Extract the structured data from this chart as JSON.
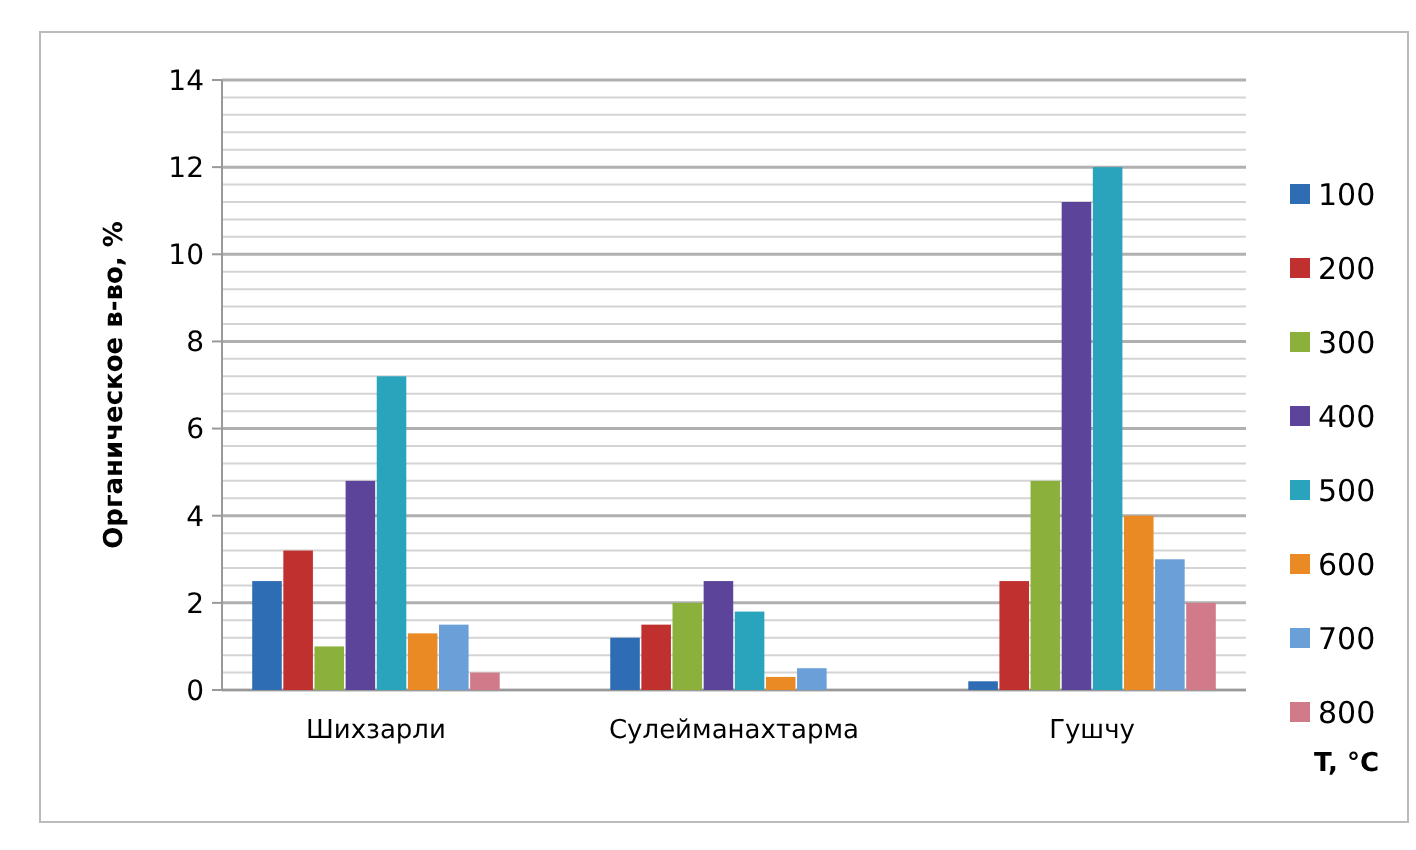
{
  "chart_data": {
    "type": "bar",
    "ylabel": "Органическое в-во, %",
    "legend_title": "T, °C",
    "legend": "right",
    "grid": "y",
    "categories": [
      "Шихзарли",
      "Сулейманахтарма",
      "Гушчу"
    ],
    "ylim": [
      0,
      14
    ],
    "yticks": [
      0,
      {
        "value": 0.4,
        "label": null
      },
      {
        "value": 0.8,
        "label": null
      },
      {
        "value": 1.2,
        "label": null
      },
      {
        "value": 1.6,
        "label": null
      },
      2,
      {
        "value": 2.4,
        "label": null
      },
      {
        "value": 2.8,
        "label": null
      },
      {
        "value": 3.2,
        "label": null
      },
      {
        "value": 3.6,
        "label": null
      },
      4,
      {
        "value": 4.4,
        "label": null
      },
      {
        "value": 4.8,
        "label": null
      },
      {
        "value": 5.2,
        "label": null
      },
      {
        "value": 5.6,
        "label": null
      },
      6,
      {
        "value": 6.4,
        "label": null
      },
      {
        "value": 6.8,
        "label": null
      },
      {
        "value": 7.2,
        "label": null
      },
      {
        "value": 7.6,
        "label": null
      },
      8,
      {
        "value": 8.4,
        "label": null
      },
      {
        "value": 8.8,
        "label": null
      },
      {
        "value": 9.2,
        "label": null
      },
      {
        "value": 9.6,
        "label": null
      },
      10,
      {
        "value": 10.4,
        "label": null
      },
      {
        "value": 10.8,
        "label": null
      },
      {
        "value": 11.2,
        "label": null
      },
      {
        "value": 11.6,
        "label": null
      },
      12,
      {
        "value": 12.4,
        "label": null
      },
      {
        "value": 12.8,
        "label": null
      },
      {
        "value": 13.2,
        "label": null
      },
      {
        "value": 13.6,
        "label": null
      },
      14
    ],
    "series": [
      {
        "name": "100",
        "color": "#2e6db4",
        "values": [
          2.5,
          1.2,
          0.2
        ]
      },
      {
        "name": "200",
        "color": "#c0302e",
        "values": [
          3.2,
          1.5,
          2.5
        ]
      },
      {
        "name": "300",
        "color": "#8cb03c",
        "values": [
          1.0,
          2.0,
          4.8
        ]
      },
      {
        "name": "400",
        "color": "#5b449a",
        "values": [
          4.8,
          2.5,
          11.2
        ]
      },
      {
        "name": "500",
        "color": "#2aa4bc",
        "values": [
          7.2,
          1.8,
          12.0
        ]
      },
      {
        "name": "600",
        "color": "#ea8a25",
        "values": [
          1.3,
          0.3,
          4.0
        ]
      },
      {
        "name": "700",
        "color": "#6a9fd8",
        "values": [
          1.5,
          0.5,
          3.0
        ]
      },
      {
        "name": "800",
        "color": "#d07a8a",
        "values": [
          0.4,
          0,
          2.0
        ]
      }
    ]
  }
}
